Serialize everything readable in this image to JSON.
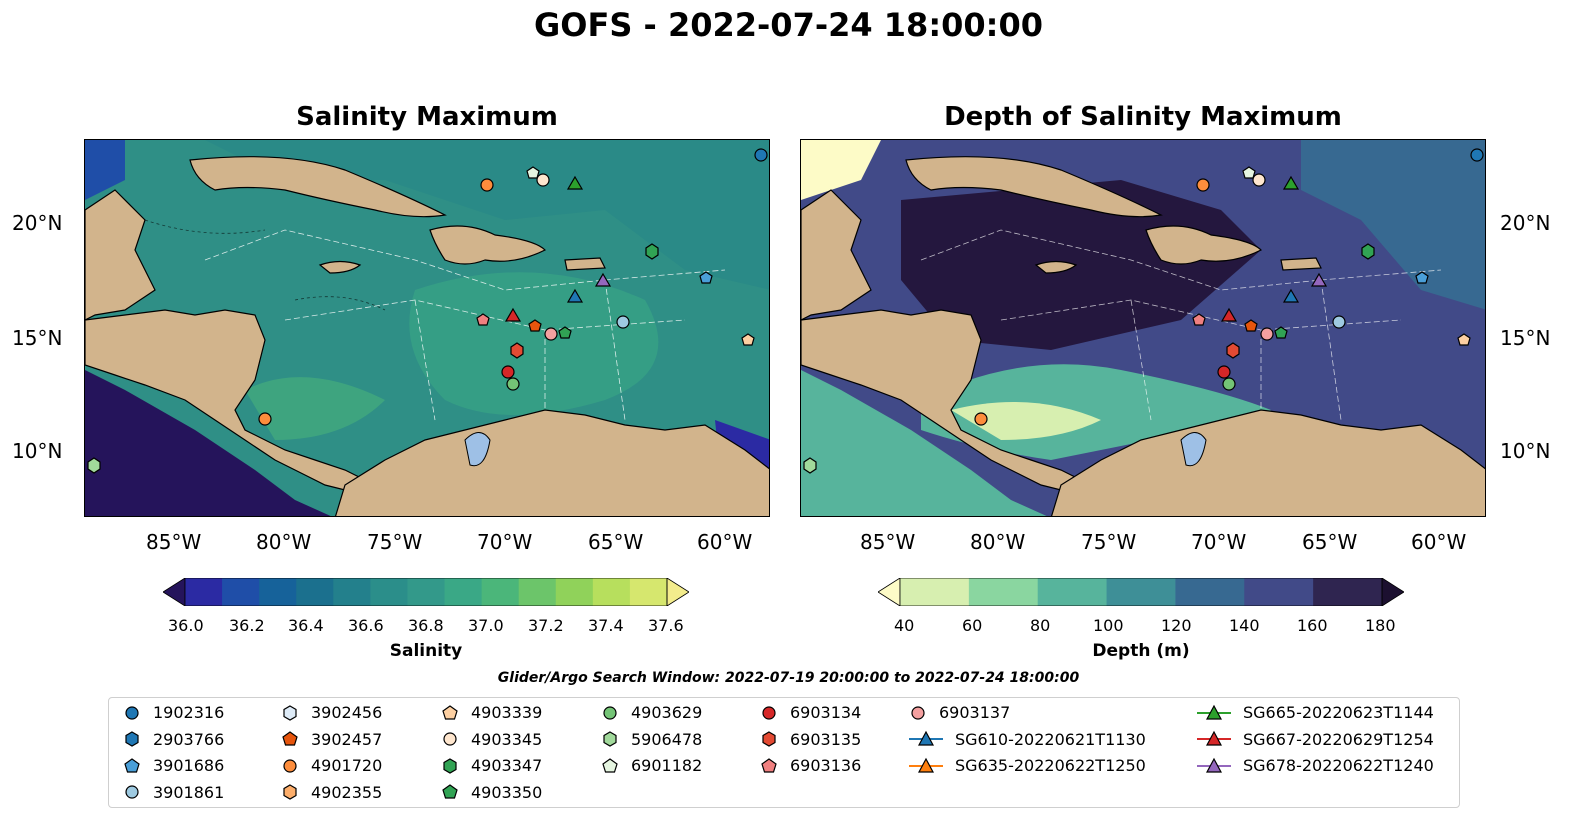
{
  "title": "GOFS - 2022-07-24 18:00:00",
  "panels": [
    {
      "title": "Salinity Maximum",
      "colorbar_label": "Salinity",
      "ticks": [
        "36.0",
        "36.2",
        "36.4",
        "36.6",
        "36.8",
        "37.0",
        "37.2",
        "37.4",
        "37.6"
      ]
    },
    {
      "title": "Depth of Salinity Maximum",
      "colorbar_label": "Depth (m)",
      "ticks": [
        "40",
        "60",
        "80",
        "100",
        "120",
        "140",
        "160",
        "180"
      ]
    }
  ],
  "x_ticks": [
    "85°W",
    "80°W",
    "75°W",
    "70°W",
    "65°W",
    "60°W"
  ],
  "y_ticks": [
    "20°N",
    "15°N",
    "10°N"
  ],
  "search_window": "Glider/Argo Search Window: 2022-07-19 20:00:00 to 2022-07-24 18:00:00",
  "colors": {
    "land": "#d2b48c",
    "salinity_scale": [
      "#25145b",
      "#2b2aa3",
      "#1f4ea8",
      "#16629a",
      "#1b708e",
      "#23808c",
      "#2b8e8a",
      "#33998a",
      "#3aa886",
      "#4bb67a",
      "#6cc56a",
      "#90d25a",
      "#b7df5d",
      "#d6e76e",
      "#f3ec8c"
    ],
    "depth_scale": [
      "#fdfbc7",
      "#d7efb0",
      "#8ad6a0",
      "#57b49c",
      "#3e8f97",
      "#376991",
      "#414a88",
      "#2f2550",
      "#1c1030"
    ]
  },
  "legend": [
    {
      "label": "1902316",
      "marker": "circle",
      "color": "#1f77b4"
    },
    {
      "label": "2903766",
      "marker": "hexagon",
      "color": "#1f77b4"
    },
    {
      "label": "3901686",
      "marker": "pentagon",
      "color": "#4a9fd8"
    },
    {
      "label": "3901861",
      "marker": "circle",
      "color": "#9ecae1"
    },
    {
      "label": "3902456",
      "marker": "hexagon",
      "color": "#deebf7"
    },
    {
      "label": "3902457",
      "marker": "pentagon",
      "color": "#e6550d"
    },
    {
      "label": "4901720",
      "marker": "circle",
      "color": "#fd8d3c"
    },
    {
      "label": "4902355",
      "marker": "hexagon",
      "color": "#fdae6b"
    },
    {
      "label": "4903339",
      "marker": "pentagon",
      "color": "#fdd0a2"
    },
    {
      "label": "4903345",
      "marker": "circle",
      "color": "#fee6ce"
    },
    {
      "label": "4903347",
      "marker": "hexagon",
      "color": "#31a354"
    },
    {
      "label": "4903350",
      "marker": "pentagon",
      "color": "#31a354"
    },
    {
      "label": "4903629",
      "marker": "circle",
      "color": "#74c476"
    },
    {
      "label": "5906478",
      "marker": "hexagon",
      "color": "#a1d99b"
    },
    {
      "label": "6901182",
      "marker": "pentagon",
      "color": "#e5f5e0"
    },
    {
      "label": "6903134",
      "marker": "circle",
      "color": "#d62728"
    },
    {
      "label": "6903135",
      "marker": "hexagon",
      "color": "#e34a33"
    },
    {
      "label": "6903136",
      "marker": "pentagon",
      "color": "#f08080"
    },
    {
      "label": "6903137",
      "marker": "circle",
      "color": "#f4a0a0"
    },
    {
      "label": "SG610-20220621T1130",
      "marker": "triangle",
      "color": "#1f77b4"
    },
    {
      "label": "SG635-20220622T1250",
      "marker": "triangle",
      "color": "#ff7f0e"
    },
    {
      "label": "SG665-20220623T1144",
      "marker": "triangle",
      "color": "#2ca02c"
    },
    {
      "label": "SG667-20220629T1254",
      "marker": "triangle",
      "color": "#d62728"
    },
    {
      "label": "SG678-20220622T1240",
      "marker": "triangle",
      "color": "#9467bd"
    }
  ]
}
